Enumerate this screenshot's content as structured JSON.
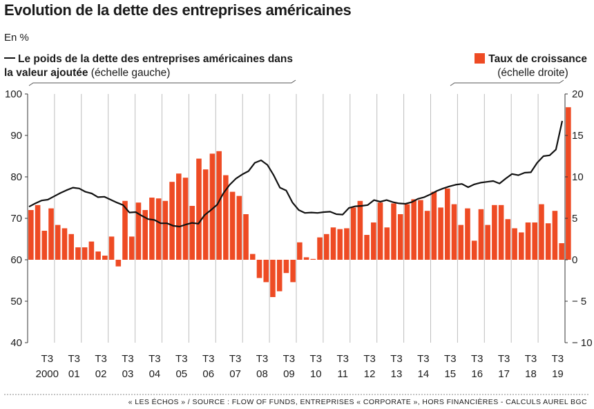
{
  "header": {
    "title": "Evolution de la dette des entreprises américaines",
    "unit": "En %"
  },
  "legend": {
    "line_label_bold": "Le poids de la dette des entreprises américaines dans la valeur ajoutée",
    "line_label_normal": "(échelle gauche)",
    "bar_label_bold": "Taux de croissance",
    "bar_label_normal": "(échelle droite)"
  },
  "footer": {
    "source": "« LES ÉCHOS » / SOURCE : FLOW OF FUNDS, ENTREPRISES « CORPORATE », HORS FINANCIÈRES - CALCULS AUREL BGC"
  },
  "colors": {
    "bar": "#ee4b24",
    "line": "#111111",
    "grid": "#bdbdbd",
    "axis": "#333333"
  },
  "chart_data": {
    "type": "bar",
    "title": "Evolution de la dette des entreprises américaines",
    "x_tick_labels": [
      [
        "T3",
        "2000"
      ],
      [
        "T3",
        "01"
      ],
      [
        "T3",
        "02"
      ],
      [
        "T3",
        "03"
      ],
      [
        "T3",
        "04"
      ],
      [
        "T3",
        "05"
      ],
      [
        "T3",
        "06"
      ],
      [
        "T3",
        "07"
      ],
      [
        "T3",
        "08"
      ],
      [
        "T3",
        "09"
      ],
      [
        "T3",
        "10"
      ],
      [
        "T3",
        "11"
      ],
      [
        "T3",
        "12"
      ],
      [
        "T3",
        "13"
      ],
      [
        "T3",
        "14"
      ],
      [
        "T3",
        "15"
      ],
      [
        "T3",
        "16"
      ],
      [
        "T3",
        "17"
      ],
      [
        "T3",
        "18"
      ],
      [
        "T3",
        "19"
      ]
    ],
    "x_start": "2000 T1",
    "x_end": "2019 T4",
    "y_left": {
      "lim": [
        40,
        100
      ],
      "ticks": [
        40,
        50,
        60,
        70,
        80,
        90,
        100
      ]
    },
    "y_right": {
      "lim": [
        -10,
        20
      ],
      "ticks": [
        -10,
        -5,
        0,
        5,
        10,
        15,
        20
      ]
    },
    "grid": true,
    "series": [
      {
        "name": "Taux de croissance",
        "kind": "bar",
        "axis": "right",
        "values": [
          6.0,
          6.6,
          3.5,
          6.2,
          4.2,
          3.8,
          3.1,
          1.5,
          1.5,
          2.2,
          1.0,
          0.5,
          2.8,
          -0.8,
          7.1,
          2.8,
          6.9,
          6.0,
          7.5,
          7.4,
          7.1,
          9.4,
          10.4,
          9.9,
          6.5,
          12.2,
          10.9,
          12.8,
          13.1,
          10.2,
          8.2,
          7.7,
          5.5,
          0.7,
          -2.2,
          -2.7,
          -4.5,
          -3.8,
          -1.6,
          -2.7,
          2.1,
          0.3,
          0.1,
          2.7,
          3.1,
          3.9,
          3.7,
          3.8,
          6.3,
          7.1,
          3.0,
          4.5,
          6.9,
          3.9,
          6.8,
          5.5,
          6.7,
          7.3,
          7.2,
          5.9,
          8.2,
          6.3,
          8.6,
          6.7,
          4.2,
          6.2,
          2.3,
          6.1,
          4.2,
          6.6,
          6.6,
          4.9,
          3.8,
          3.3,
          4.5,
          4.5,
          6.7,
          4.4,
          5.9,
          2.0,
          18.4
        ]
      },
      {
        "name": "Le poids de la dette des entreprises américaines dans la valeur ajoutée",
        "kind": "line",
        "axis": "left",
        "values": [
          72.8,
          73.6,
          74.3,
          74.5,
          75.3,
          76.1,
          76.8,
          77.4,
          77.2,
          76.4,
          76.0,
          75.1,
          75.2,
          74.5,
          73.8,
          73.2,
          71.4,
          71.5,
          70.6,
          69.8,
          69.6,
          68.8,
          68.8,
          68.2,
          68.0,
          68.5,
          68.9,
          68.7,
          70.8,
          72.0,
          73.3,
          76.1,
          78.1,
          79.6,
          80.6,
          81.4,
          83.4,
          84.0,
          82.9,
          80.4,
          77.4,
          76.7,
          73.8,
          72.0,
          71.3,
          71.4,
          71.3,
          71.5,
          71.6,
          71.0,
          70.9,
          72.5,
          72.9,
          73.0,
          73.2,
          74.4,
          74.0,
          74.4,
          73.9,
          73.6,
          73.5,
          73.9,
          74.7,
          75.1,
          75.8,
          76.6,
          77.2,
          77.7,
          78.1,
          78.3,
          77.5,
          78.2,
          78.6,
          78.8,
          79.0,
          78.4,
          79.6,
          80.7,
          80.4,
          81.0,
          81.1,
          83.4,
          85.0,
          85.2,
          86.6,
          93.5
        ]
      }
    ]
  }
}
